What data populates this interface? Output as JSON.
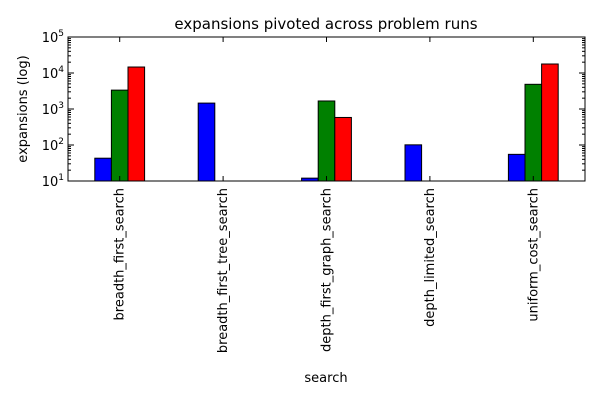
{
  "chart_data": {
    "type": "bar",
    "title": "expansions pivoted across problem runs",
    "xlabel": "search",
    "ylabel": "expansions (log)",
    "yscale": "log",
    "ylim": [
      10,
      100000
    ],
    "grid": false,
    "categories": [
      "breadth_first_search",
      "breadth_first_tree_search",
      "depth_first_graph_search",
      "depth_limited_search",
      "uniform_cost_search"
    ],
    "series": [
      {
        "color": "#0000ff",
        "values": [
          43,
          1458,
          12,
          101,
          55
        ]
      },
      {
        "color": "#008000",
        "values": [
          3343,
          null,
          1669,
          null,
          4852
        ]
      },
      {
        "color": "#ff0000",
        "values": [
          14663,
          null,
          582,
          null,
          17783
        ]
      }
    ],
    "y_ticks": [
      {
        "base": "10",
        "exp": "1"
      },
      {
        "base": "10",
        "exp": "2"
      },
      {
        "base": "10",
        "exp": "3"
      },
      {
        "base": "10",
        "exp": "4"
      },
      {
        "base": "10",
        "exp": "5"
      }
    ]
  }
}
